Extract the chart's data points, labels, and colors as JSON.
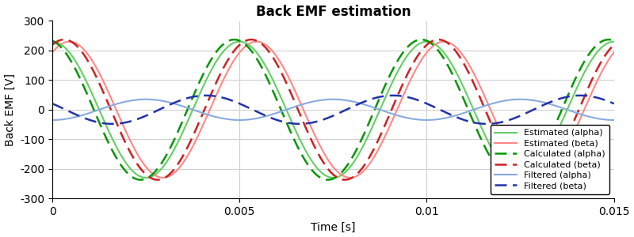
{
  "title": "Back EMF estimation",
  "xlabel": "Time [s]",
  "ylabel": "Back EMF [V]",
  "xlim": [
    0,
    0.015
  ],
  "ylim": [
    -300,
    300
  ],
  "xticks": [
    0,
    0.005,
    0.01,
    0.015
  ],
  "yticks": [
    -300,
    -200,
    -100,
    0,
    100,
    200,
    300
  ],
  "freq": 200,
  "amplitude_est": 230,
  "amplitude_calc": 237,
  "amplitude_filt_alpha": 35,
  "amplitude_filt_beta": 48,
  "phase_est_alpha": 0.0,
  "phase_est_beta": 1.0,
  "calc_lead": 0.18,
  "phase_filt_alpha": -1.57,
  "phase_filt_beta": 2.7,
  "colors": {
    "estimated_alpha": "#66CC66",
    "estimated_beta": "#FF8888",
    "calculated_alpha": "#009900",
    "calculated_beta": "#CC2222",
    "filtered_alpha": "#88AADD",
    "filtered_beta": "#2233AA"
  },
  "legend_labels": [
    "Estimated (alpha)",
    "Estimated (beta)",
    "Calculated (alpha)",
    "Calculated (beta)",
    "Filtered (alpha)",
    "Filtered (beta)"
  ],
  "background_color": "#ffffff",
  "grid_color": "#d0d0d0",
  "title_fontsize": 12,
  "label_fontsize": 10
}
